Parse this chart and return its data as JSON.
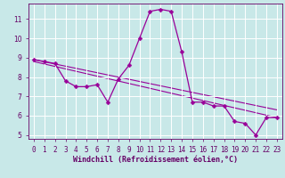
{
  "xlabel": "Windchill (Refroidissement éolien,°C)",
  "background_color": "#c8e8e8",
  "line_color": "#990099",
  "grid_color": "#ffffff",
  "x_data": [
    0,
    1,
    2,
    3,
    4,
    5,
    6,
    7,
    8,
    9,
    10,
    11,
    12,
    13,
    14,
    15,
    16,
    17,
    18,
    19,
    20,
    21,
    22,
    23
  ],
  "y_data": [
    8.9,
    8.8,
    8.7,
    7.8,
    7.5,
    7.5,
    7.6,
    6.7,
    7.9,
    8.6,
    10.0,
    11.4,
    11.5,
    11.4,
    9.3,
    6.7,
    6.7,
    6.5,
    6.5,
    5.7,
    5.6,
    5.0,
    5.9,
    5.9
  ],
  "trend1_x": [
    0,
    23
  ],
  "trend1_y": [
    8.9,
    6.3
  ],
  "trend2_x": [
    0,
    23
  ],
  "trend2_y": [
    8.8,
    5.9
  ],
  "ylim": [
    4.8,
    11.8
  ],
  "xlim": [
    -0.5,
    23.5
  ],
  "yticks": [
    5,
    6,
    7,
    8,
    9,
    10,
    11
  ],
  "xtick_labels": [
    "0",
    "1",
    "2",
    "3",
    "4",
    "5",
    "6",
    "7",
    "8",
    "9",
    "10",
    "11",
    "12",
    "13",
    "14",
    "15",
    "16",
    "17",
    "18",
    "19",
    "20",
    "21",
    "22",
    "23"
  ],
  "tick_fontsize": 5.5,
  "xlabel_fontsize": 6.0,
  "xlabel_color": "#660066"
}
